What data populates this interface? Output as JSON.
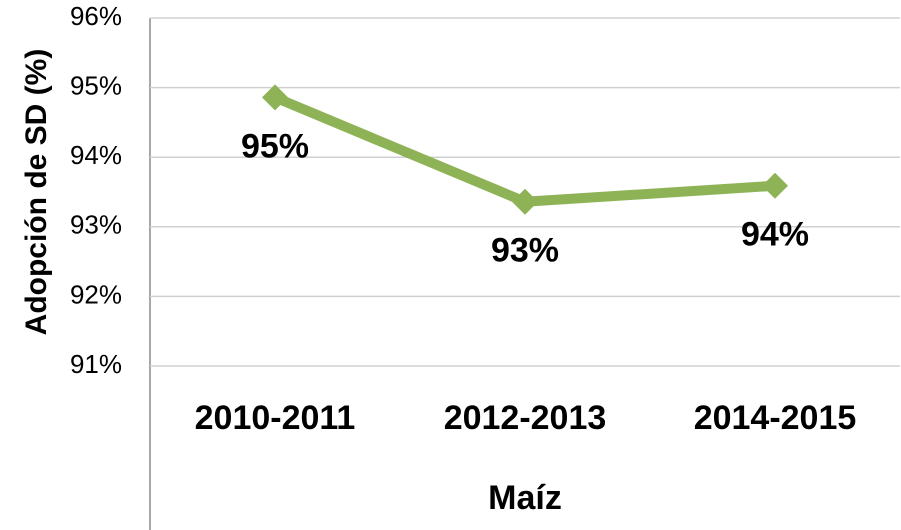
{
  "chart_data": {
    "type": "line",
    "categories": [
      "2010-2011",
      "2012-2013",
      "2014-2015"
    ],
    "series": [
      {
        "name": "Maíz",
        "color": "#8db356",
        "values": [
          94.86,
          93.36,
          93.59
        ],
        "value_labels": [
          "95%",
          "93%",
          "94%"
        ]
      }
    ],
    "x_label": "Maíz",
    "y_label": "Adopción de SD (%)",
    "ylim": [
      91,
      96
    ],
    "yticks": [
      {
        "value": 91,
        "label": "91%"
      },
      {
        "value": 92,
        "label": "92%"
      },
      {
        "value": 93,
        "label": "93%"
      },
      {
        "value": 94,
        "label": "94%"
      },
      {
        "value": 95,
        "label": "95%"
      },
      {
        "value": 96,
        "label": "96%"
      }
    ],
    "grid": true
  }
}
